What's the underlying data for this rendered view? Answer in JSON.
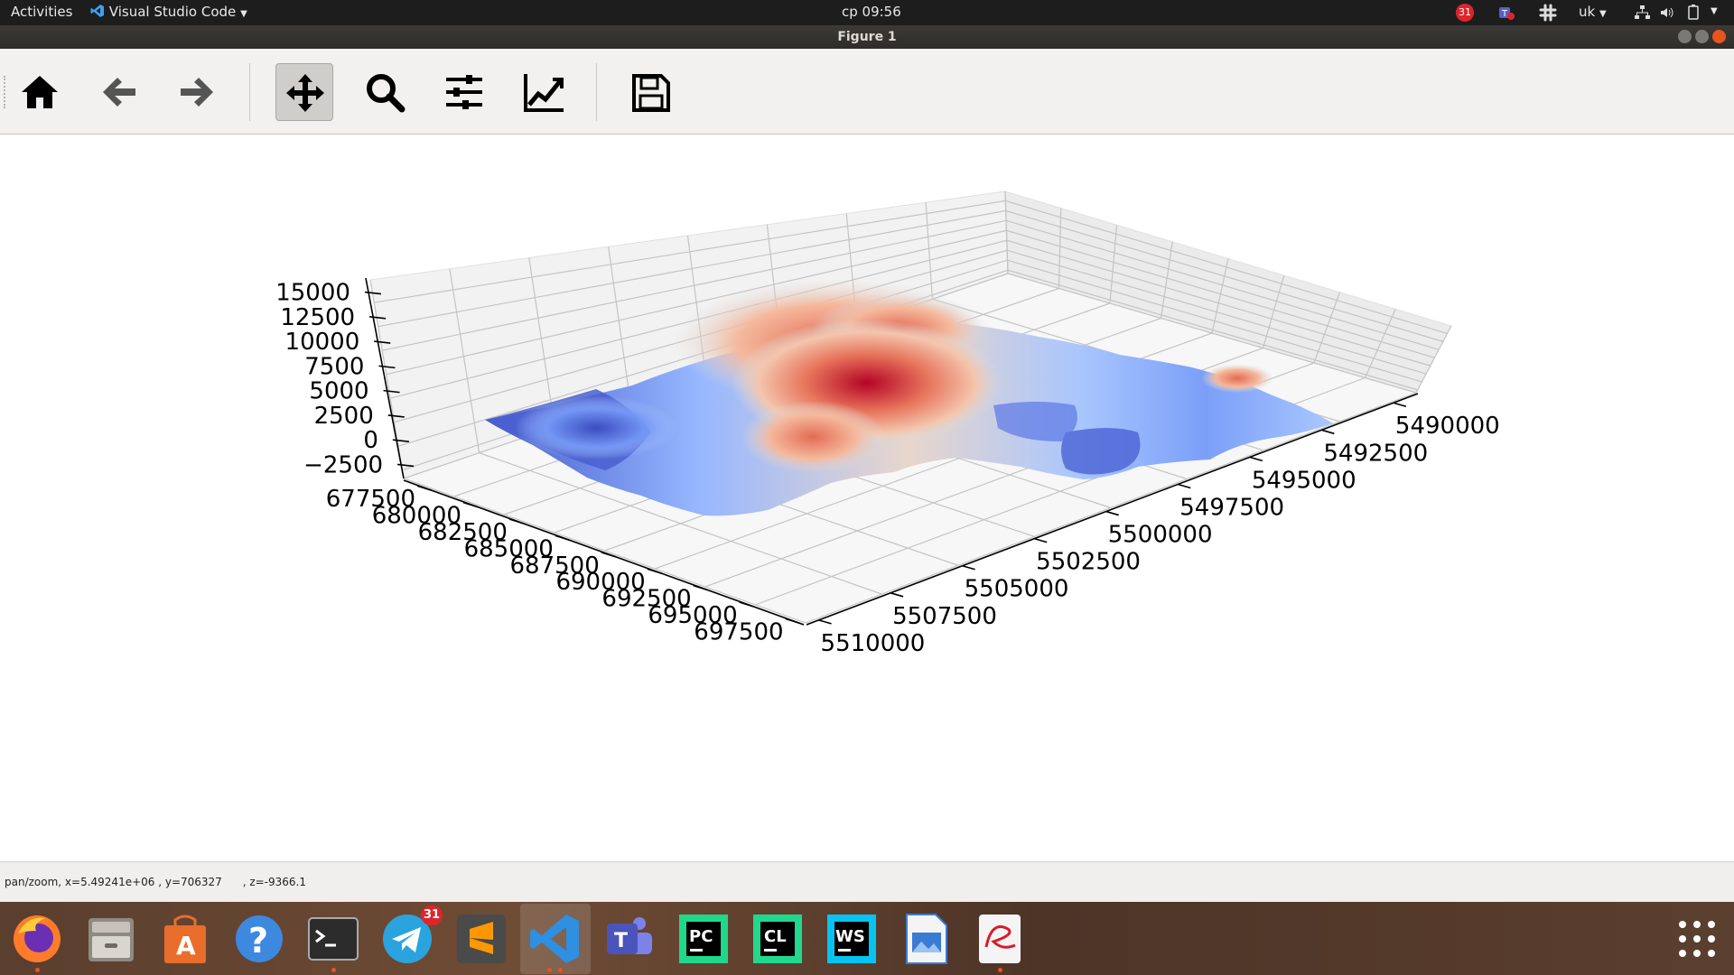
{
  "topbar": {
    "activities": "Activities",
    "app_name": "Visual Studio Code",
    "clock": "ср 09:56",
    "calendar_badge": "31",
    "keyboard_layout": "uk"
  },
  "window": {
    "title": "Figure 1"
  },
  "toolbar": {
    "buttons": [
      {
        "name": "home",
        "icon": "home-icon"
      },
      {
        "name": "back",
        "icon": "arrow-left-icon"
      },
      {
        "name": "forward",
        "icon": "arrow-right-icon"
      },
      {
        "name": "pan",
        "icon": "move-icon",
        "active": true
      },
      {
        "name": "zoom",
        "icon": "magnifier-icon"
      },
      {
        "name": "subplots",
        "icon": "sliders-icon"
      },
      {
        "name": "edit",
        "icon": "line-chart-icon"
      },
      {
        "name": "save",
        "icon": "floppy-icon"
      }
    ]
  },
  "status": {
    "text": "pan/zoom, x=5.49241e+06 , y=706327      , z=-9366.1"
  },
  "dock": {
    "apps": [
      "Firefox",
      "Files",
      "Ubuntu Software",
      "Help",
      "Terminal",
      "Telegram",
      "Sublime Text",
      "Visual Studio Code",
      "Microsoft Teams",
      "PyCharm",
      "CLion",
      "WebStorm",
      "Image Viewer",
      "Document Viewer",
      "Show Applications"
    ],
    "telegram_badge": "31"
  },
  "chart_data": {
    "type": "surface3d",
    "title": "",
    "colormap": "coolwarm",
    "z_ticks": [
      "15000",
      "12500",
      "10000",
      "7500",
      "5000",
      "2500",
      "0",
      "−2500"
    ],
    "x_ticks": [
      "677500",
      "680000",
      "682500",
      "685000",
      "687500",
      "690000",
      "692500",
      "695000",
      "697500"
    ],
    "y_ticks": [
      "5510000",
      "5507500",
      "5505000",
      "5502500",
      "5500000",
      "5497500",
      "5495000",
      "5492500",
      "5490000"
    ],
    "zlim": [
      -2500,
      15000
    ],
    "xlim": [
      677500,
      697500
    ],
    "ylim": [
      5490000,
      5510000
    ],
    "surface_peak_z": 9000,
    "surface_min_z": -1000,
    "grid": true
  }
}
